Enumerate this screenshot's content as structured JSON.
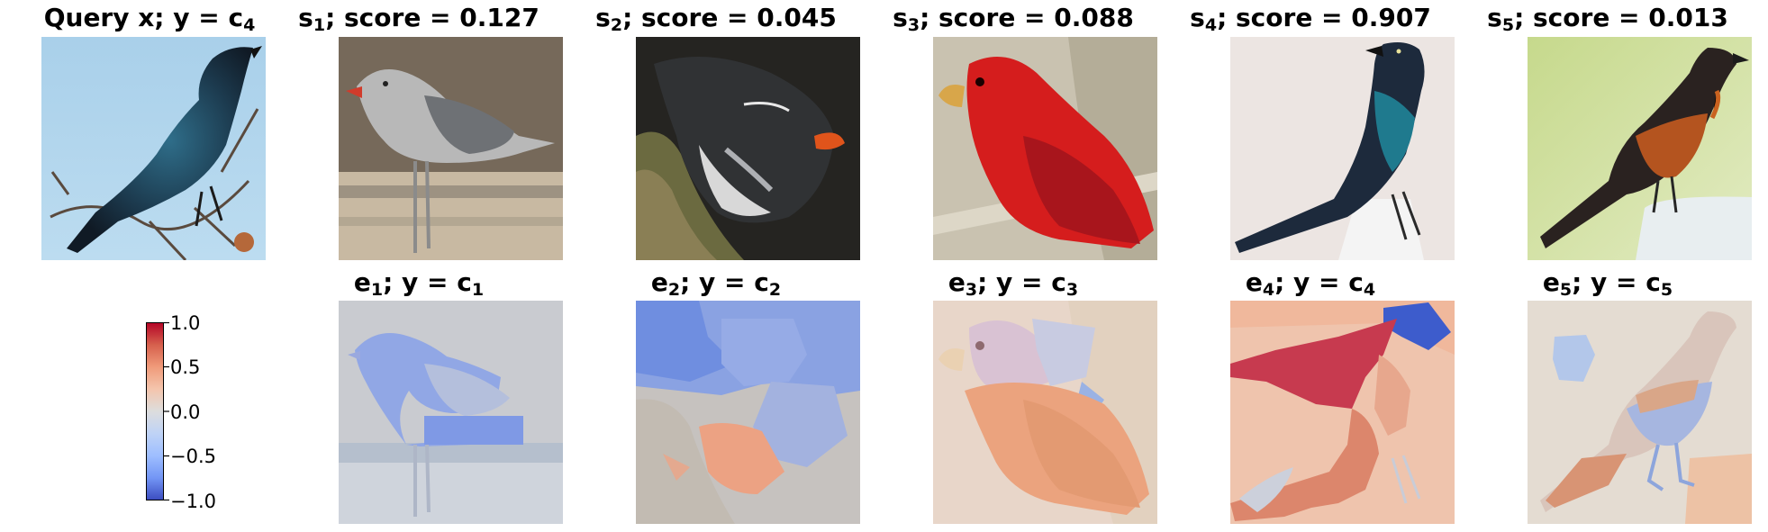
{
  "top_row": [
    {
      "title_main": "Query x; y = c",
      "title_sub": "4",
      "title_suffix": "",
      "image": "blue-black-bird-on-branch"
    },
    {
      "title_main": "s",
      "title_sub": "1",
      "title_suffix": "; score = 0.127",
      "image": "gray-gull-on-beach"
    },
    {
      "title_main": "s",
      "title_sub": "2",
      "title_suffix": "; score = 0.045",
      "image": "dark-auklet-on-rock"
    },
    {
      "title_main": "s",
      "title_sub": "3",
      "title_suffix": "; score = 0.088",
      "image": "red-tanager-bird"
    },
    {
      "title_main": "s",
      "title_sub": "4",
      "title_suffix": "; score = 0.907",
      "image": "iridescent-grackle"
    },
    {
      "title_main": "s",
      "title_sub": "5",
      "title_suffix": "; score = 0.013",
      "image": "orange-black-oriole"
    }
  ],
  "bottom_row": [
    {
      "title_main": "e",
      "title_sub": "1",
      "title_suffix": "; y = c",
      "title_sub2": "1",
      "image": "gull-explanation-heatmap"
    },
    {
      "title_main": "e",
      "title_sub": "2",
      "title_suffix": "; y = c",
      "title_sub2": "2",
      "image": "auklet-explanation-heatmap"
    },
    {
      "title_main": "e",
      "title_sub": "3",
      "title_suffix": "; y = c",
      "title_sub2": "3",
      "image": "tanager-explanation-heatmap"
    },
    {
      "title_main": "e",
      "title_sub": "4",
      "title_suffix": "; y = c",
      "title_sub2": "4",
      "image": "grackle-explanation-heatmap"
    },
    {
      "title_main": "e",
      "title_sub": "5",
      "title_suffix": "; y = c",
      "title_sub2": "5",
      "image": "oriole-explanation-heatmap"
    }
  ],
  "colorbar": {
    "colormap": "coolwarm",
    "min": -1.0,
    "max": 1.0,
    "ticks": [
      "1.0",
      "0.5",
      "0.0",
      "−0.5",
      "−1.0"
    ],
    "color_high": "#b40426",
    "color_mid": "#dddddd",
    "color_low": "#3b4cc0"
  }
}
